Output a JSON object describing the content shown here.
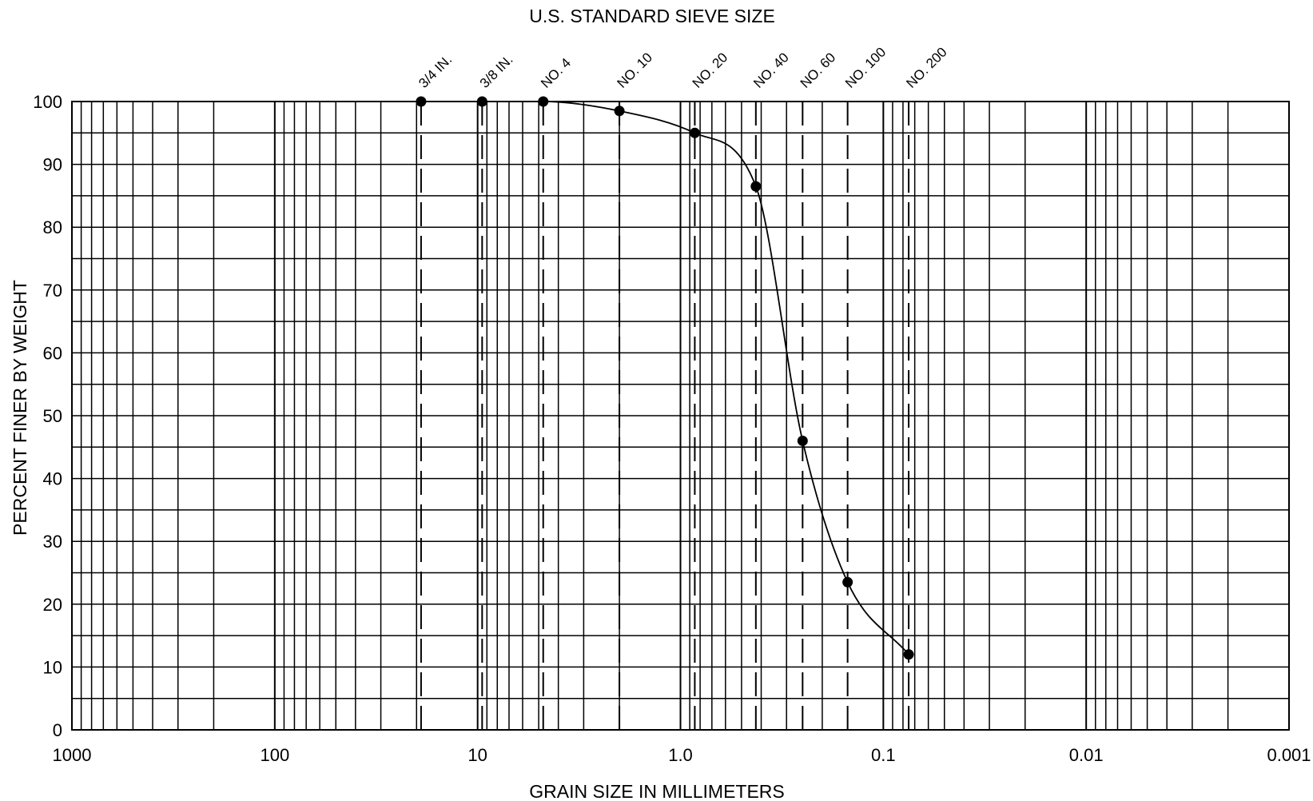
{
  "chart_data": {
    "type": "line",
    "title": "U.S. STANDARD SIEVE SIZE",
    "xlabel": "GRAIN SIZE IN MILLIMETERS",
    "ylabel": "PERCENT FINER BY WEIGHT",
    "x_scale": "log",
    "x_reversed": true,
    "xlim": [
      1000,
      0.001
    ],
    "ylim": [
      0,
      100
    ],
    "grid": true,
    "x_ticks": [
      {
        "value": 1000,
        "label": "1000"
      },
      {
        "value": 100,
        "label": "100"
      },
      {
        "value": 10,
        "label": "10"
      },
      {
        "value": 1,
        "label": "1.0"
      },
      {
        "value": 0.1,
        "label": "0.1"
      },
      {
        "value": 0.01,
        "label": "0.01"
      },
      {
        "value": 0.001,
        "label": "0.001"
      }
    ],
    "y_ticks": [
      0,
      10,
      20,
      30,
      40,
      50,
      60,
      70,
      80,
      90,
      100
    ],
    "sieves": [
      {
        "label": "3/4 IN.",
        "size_mm": 19.0
      },
      {
        "label": "3/8 IN.",
        "size_mm": 9.5
      },
      {
        "label": "NO. 4",
        "size_mm": 4.75
      },
      {
        "label": "NO. 10",
        "size_mm": 2.0
      },
      {
        "label": "NO. 20",
        "size_mm": 0.85
      },
      {
        "label": "NO. 40",
        "size_mm": 0.425
      },
      {
        "label": "NO. 60",
        "size_mm": 0.25
      },
      {
        "label": "NO. 100",
        "size_mm": 0.15
      },
      {
        "label": "NO. 200",
        "size_mm": 0.075
      }
    ],
    "series": [
      {
        "x": [
          19.0,
          9.5,
          4.75,
          2.0,
          0.85,
          0.425,
          0.25,
          0.15,
          0.075
        ],
        "y": [
          100,
          100,
          100,
          98.5,
          95,
          86.5,
          46,
          23.5,
          12
        ]
      }
    ]
  }
}
